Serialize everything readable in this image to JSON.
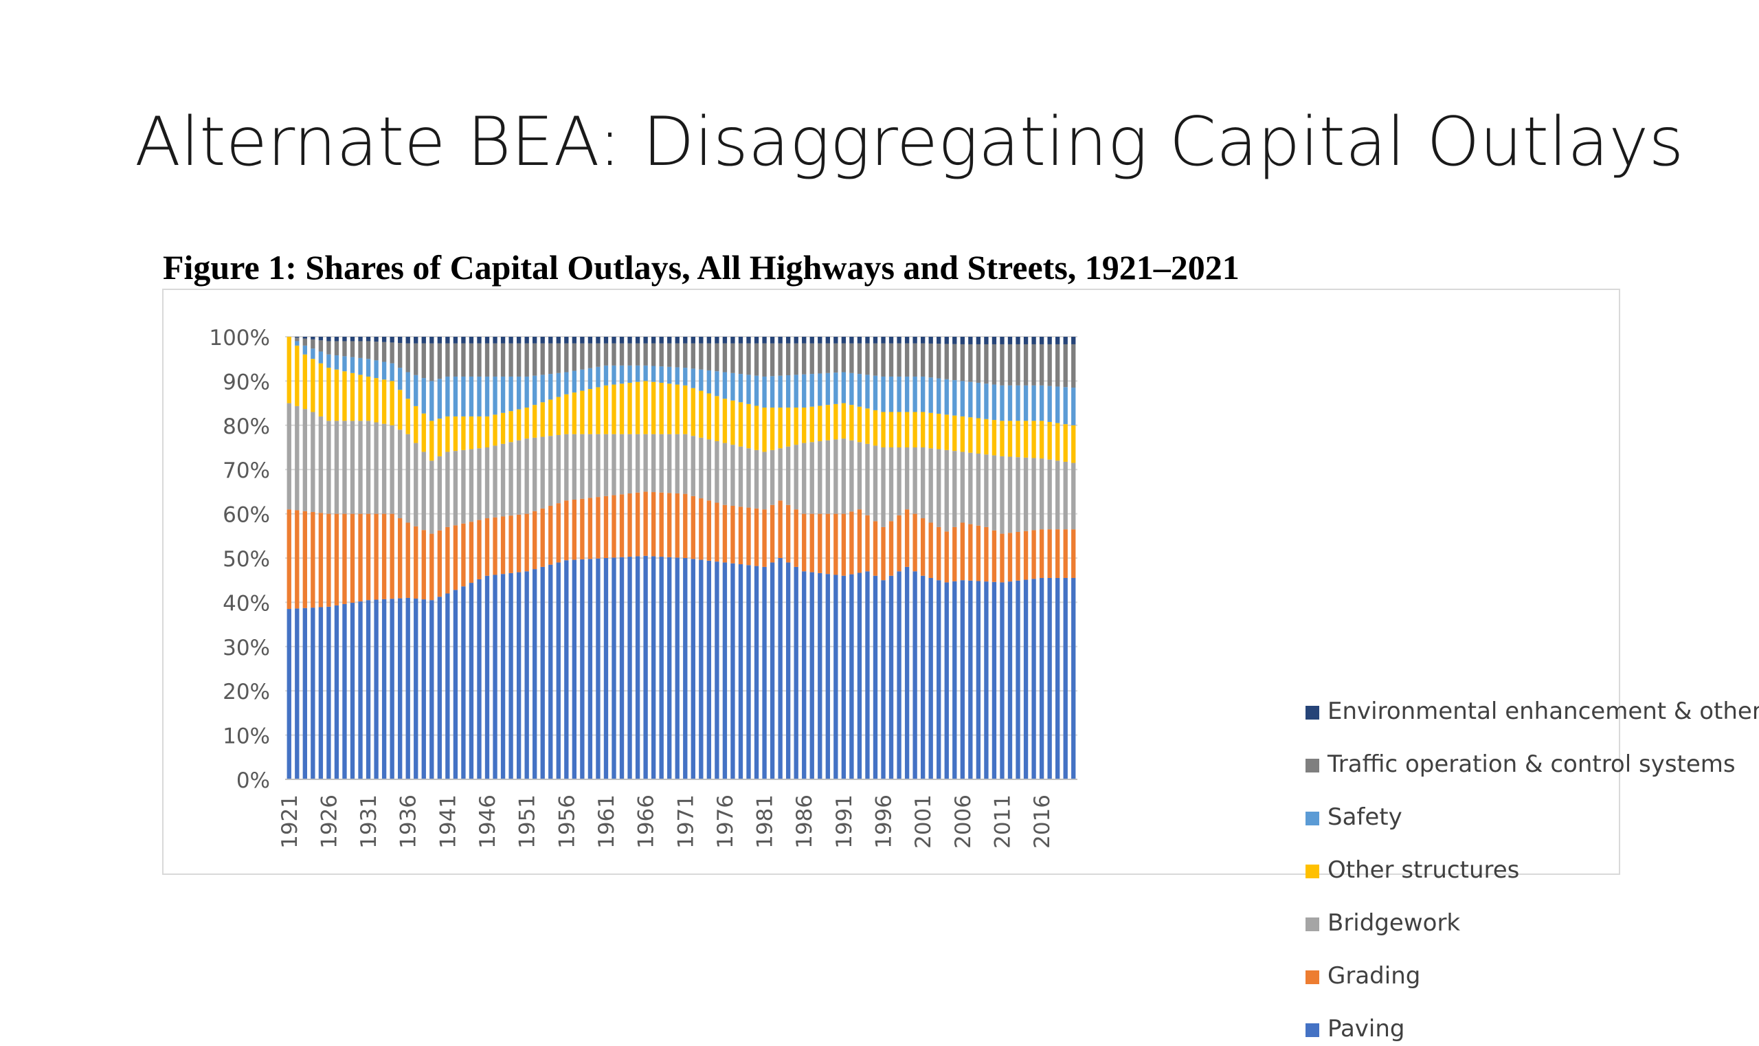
{
  "slide": {
    "title": "Alternate BEA: Disaggregating Capital Outlays"
  },
  "chart_data": {
    "type": "bar",
    "stacked": "percent",
    "title": "Figure 1: Shares of Capital Outlays, All Highways and Streets, 1921–2021",
    "x_start": 1921,
    "x_end": 2020,
    "tick_labels": [
      "1921",
      "1926",
      "1931",
      "1936",
      "1941",
      "1946",
      "1951",
      "1956",
      "1961",
      "1966",
      "1971",
      "1976",
      "1981",
      "1986",
      "1991",
      "1996",
      "2001",
      "2006",
      "2011",
      "2016"
    ],
    "y_tick_labels": [
      "100%",
      "90%",
      "80%",
      "70%",
      "60%",
      "50%",
      "40%",
      "30%",
      "20%",
      "10%",
      "0%"
    ],
    "ylim": [
      0,
      100
    ],
    "legend_position": "right",
    "grid": true,
    "series": [
      {
        "name": "Paving",
        "color": "#4472C4",
        "keyframes": [
          [
            1921,
            38.5
          ],
          [
            1926,
            39
          ],
          [
            1931,
            40.5
          ],
          [
            1936,
            41
          ],
          [
            1939,
            40.5
          ],
          [
            1941,
            42
          ],
          [
            1946,
            46
          ],
          [
            1951,
            47
          ],
          [
            1956,
            49.5
          ],
          [
            1961,
            50
          ],
          [
            1966,
            50.5
          ],
          [
            1971,
            50
          ],
          [
            1976,
            49
          ],
          [
            1981,
            48
          ],
          [
            1983,
            50
          ],
          [
            1986,
            47
          ],
          [
            1991,
            46
          ],
          [
            1994,
            47
          ],
          [
            1996,
            45
          ],
          [
            1999,
            48
          ],
          [
            2001,
            46
          ],
          [
            2004,
            44.5
          ],
          [
            2006,
            45
          ],
          [
            2011,
            44.5
          ],
          [
            2016,
            45.5
          ],
          [
            2020,
            45.5
          ]
        ]
      },
      {
        "name": "Grading",
        "color": "#ED7D31",
        "keyframes": [
          [
            1921,
            61
          ],
          [
            1926,
            60
          ],
          [
            1931,
            60
          ],
          [
            1934,
            60
          ],
          [
            1936,
            58
          ],
          [
            1939,
            55.5
          ],
          [
            1941,
            57
          ],
          [
            1946,
            59
          ],
          [
            1951,
            60
          ],
          [
            1956,
            63
          ],
          [
            1961,
            64
          ],
          [
            1966,
            65
          ],
          [
            1971,
            64.5
          ],
          [
            1976,
            62
          ],
          [
            1981,
            61
          ],
          [
            1983,
            63
          ],
          [
            1986,
            60
          ],
          [
            1991,
            60
          ],
          [
            1993,
            61
          ],
          [
            1996,
            57
          ],
          [
            1999,
            61
          ],
          [
            2001,
            59
          ],
          [
            2004,
            56
          ],
          [
            2006,
            58
          ],
          [
            2009,
            57
          ],
          [
            2011,
            55.5
          ],
          [
            2016,
            56.5
          ],
          [
            2020,
            56.5
          ]
        ]
      },
      {
        "name": "Bridgework",
        "color": "#A5A5A5",
        "keyframes": [
          [
            1921,
            85
          ],
          [
            1924,
            83
          ],
          [
            1926,
            81
          ],
          [
            1931,
            81
          ],
          [
            1934,
            80
          ],
          [
            1936,
            78
          ],
          [
            1939,
            72
          ],
          [
            1941,
            74
          ],
          [
            1946,
            75
          ],
          [
            1951,
            77
          ],
          [
            1956,
            78
          ],
          [
            1961,
            78
          ],
          [
            1966,
            78
          ],
          [
            1971,
            78
          ],
          [
            1976,
            76
          ],
          [
            1981,
            74
          ],
          [
            1986,
            76
          ],
          [
            1991,
            77
          ],
          [
            1996,
            75
          ],
          [
            2001,
            75
          ],
          [
            2006,
            74
          ],
          [
            2011,
            73
          ],
          [
            2016,
            72.5
          ],
          [
            2020,
            71.5
          ]
        ]
      },
      {
        "name": "Other structures",
        "color": "#FFC000",
        "keyframes": [
          [
            1921,
            100
          ],
          [
            1923,
            96
          ],
          [
            1926,
            93
          ],
          [
            1931,
            91
          ],
          [
            1934,
            90
          ],
          [
            1936,
            86
          ],
          [
            1939,
            81
          ],
          [
            1941,
            82
          ],
          [
            1946,
            82
          ],
          [
            1951,
            84
          ],
          [
            1956,
            87
          ],
          [
            1961,
            89
          ],
          [
            1966,
            90
          ],
          [
            1971,
            89
          ],
          [
            1976,
            86
          ],
          [
            1981,
            84
          ],
          [
            1986,
            84
          ],
          [
            1991,
            85
          ],
          [
            1996,
            83
          ],
          [
            2001,
            83
          ],
          [
            2006,
            82
          ],
          [
            2011,
            81
          ],
          [
            2016,
            81
          ],
          [
            2020,
            80
          ]
        ]
      },
      {
        "name": "Safety",
        "color": "#5B9BD5",
        "keyframes": [
          [
            1921,
            100
          ],
          [
            1923,
            98
          ],
          [
            1926,
            96
          ],
          [
            1931,
            95
          ],
          [
            1934,
            94
          ],
          [
            1936,
            92
          ],
          [
            1939,
            90
          ],
          [
            1941,
            91
          ],
          [
            1946,
            91
          ],
          [
            1951,
            91
          ],
          [
            1956,
            92
          ],
          [
            1961,
            93.5
          ],
          [
            1966,
            93.5
          ],
          [
            1971,
            93
          ],
          [
            1976,
            92
          ],
          [
            1981,
            91
          ],
          [
            1986,
            91.5
          ],
          [
            1991,
            92
          ],
          [
            1996,
            91
          ],
          [
            2001,
            91
          ],
          [
            2006,
            90
          ],
          [
            2011,
            89
          ],
          [
            2016,
            89
          ],
          [
            2020,
            88.5
          ]
        ]
      },
      {
        "name": "Traffic operation & control systems",
        "color": "#7F7F7F",
        "keyframes": [
          [
            1921,
            100
          ],
          [
            1926,
            99
          ],
          [
            1931,
            99
          ],
          [
            1936,
            98.5
          ],
          [
            1941,
            98.5
          ],
          [
            1946,
            98.5
          ],
          [
            1956,
            98.5
          ],
          [
            1966,
            98.5
          ],
          [
            1976,
            98.5
          ],
          [
            1986,
            98.5
          ],
          [
            1996,
            98.5
          ],
          [
            2001,
            98.5
          ],
          [
            2006,
            98.3
          ],
          [
            2011,
            98.3
          ],
          [
            2016,
            98.3
          ],
          [
            2020,
            98.3
          ]
        ]
      },
      {
        "name": "Environmental enhancement & other",
        "color": "#264478",
        "keyframes": [
          [
            1921,
            100
          ],
          [
            2020,
            100
          ]
        ]
      }
    ]
  }
}
